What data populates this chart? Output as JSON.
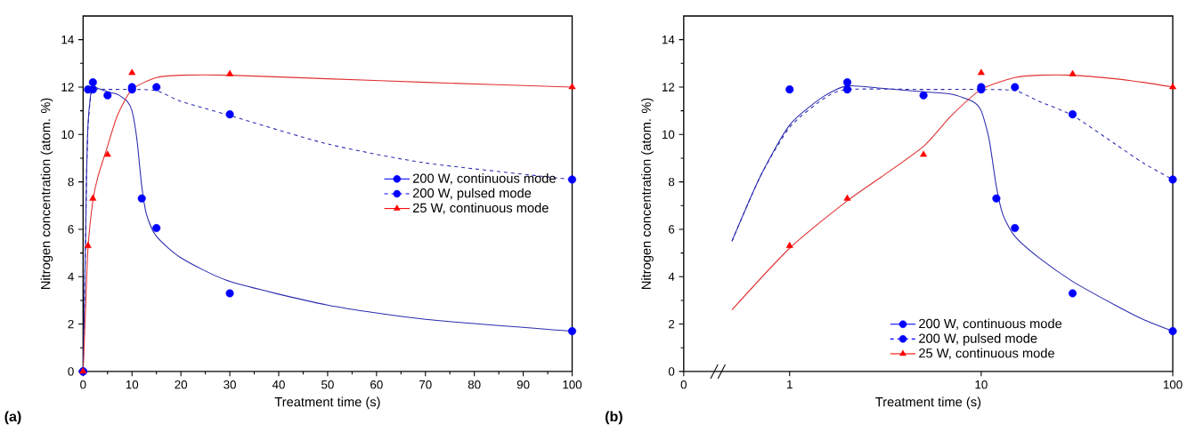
{
  "chart_data": [
    {
      "type": "scatter",
      "xlabel": "Treatment time (s)",
      "ylabel": "Nitrogen concentration (atom. %)",
      "annotations": [
        "(a)"
      ],
      "xlim": [
        0,
        100
      ],
      "ylim": [
        0,
        15
      ],
      "xticks": [
        0,
        10,
        20,
        30,
        40,
        50,
        60,
        70,
        80,
        90,
        100
      ],
      "yticks": [
        0,
        2,
        4,
        6,
        8,
        10,
        12,
        14
      ],
      "legend": "right",
      "grid": false,
      "series": [
        {
          "type": "line",
          "color": "#2b2bb0",
          "line_style": "solid",
          "marker": "none",
          "x": [
            0,
            0.5,
            0.7,
            1,
            1.5,
            2,
            3,
            5,
            7,
            9,
            10,
            11,
            12,
            13,
            15,
            20,
            30,
            50,
            70,
            100
          ],
          "values": [
            0,
            5.5,
            8.2,
            10.4,
            11.6,
            12.05,
            11.95,
            11.8,
            11.7,
            11.4,
            11.0,
            9.8,
            7.8,
            6.6,
            5.7,
            4.8,
            3.8,
            2.8,
            2.2,
            1.7
          ]
        },
        {
          "type": "line",
          "color": "#2b2bb0",
          "line_style": "dashed",
          "marker": "none",
          "x": [
            0,
            0.5,
            0.7,
            1,
            1.5,
            2,
            5,
            10,
            15,
            20,
            30,
            50,
            70,
            100
          ],
          "values": [
            0,
            5.5,
            8.2,
            10.3,
            11.5,
            11.9,
            11.9,
            11.9,
            11.85,
            11.4,
            10.8,
            9.6,
            8.8,
            8.1
          ]
        },
        {
          "type": "line",
          "color": "#e03030",
          "line_style": "solid",
          "marker": "none",
          "x": [
            0,
            0.5,
            1,
            2,
            3,
            5,
            7,
            10,
            15,
            20,
            30,
            50,
            70,
            100
          ],
          "values": [
            0,
            2.6,
            5.2,
            7.2,
            8.2,
            9.5,
            10.8,
            11.9,
            12.4,
            12.5,
            12.5,
            12.35,
            12.2,
            12.0
          ]
        },
        {
          "name": "200 W, continuous mode",
          "color": "#0000ff",
          "line_style": "solid",
          "marker": "circle",
          "x": [
            0,
            2,
            5,
            10,
            12,
            15,
            30,
            100
          ],
          "values": [
            0,
            12.2,
            11.65,
            12.0,
            7.3,
            6.05,
            3.3,
            1.7
          ]
        },
        {
          "name": "200 W, pulsed mode",
          "color": "#0000ff",
          "line_style": "dashed",
          "marker": "circle",
          "x": [
            0,
            1,
            2,
            10,
            15,
            30,
            100
          ],
          "values": [
            0,
            11.9,
            11.9,
            11.9,
            12.0,
            10.85,
            8.1
          ]
        },
        {
          "name": "25 W, continuous mode",
          "color": "#ff0000",
          "line_style": "solid",
          "marker": "triangle",
          "x": [
            0,
            1,
            2,
            5,
            10,
            30,
            100
          ],
          "values": [
            0,
            5.3,
            7.3,
            9.15,
            12.6,
            12.55,
            12.0
          ]
        }
      ]
    },
    {
      "type": "scatter",
      "xlabel": "Treatment time (s)",
      "ylabel": "Nitrogen concentration (atom. %)",
      "annotations": [
        "(b)"
      ],
      "log": "x",
      "xlim": [
        0.28,
        100
      ],
      "ylim": [
        0,
        15
      ],
      "xticks": [
        {
          "value": 0.28,
          "label": "0"
        },
        1,
        10,
        100
      ],
      "yticks": [
        0,
        2,
        4,
        6,
        8,
        10,
        12,
        14
      ],
      "legend": "bottom",
      "grid": false,
      "series": [
        {
          "type": "line",
          "color": "#2b2bb0",
          "line_style": "solid",
          "marker": "none",
          "x": [
            0.5,
            0.7,
            1,
            1.5,
            2,
            3,
            5,
            7,
            9,
            10,
            11,
            12,
            13,
            15,
            20,
            30,
            50,
            70,
            100
          ],
          "values": [
            5.5,
            8.2,
            10.4,
            11.6,
            12.05,
            11.95,
            11.8,
            11.7,
            11.4,
            11.0,
            9.8,
            7.8,
            6.6,
            5.7,
            4.8,
            3.8,
            2.8,
            2.2,
            1.7
          ]
        },
        {
          "type": "line",
          "color": "#2b2bb0",
          "line_style": "dashed",
          "marker": "none",
          "x": [
            0.5,
            0.7,
            1,
            1.5,
            2,
            5,
            10,
            15,
            20,
            30,
            50,
            70,
            100
          ],
          "values": [
            5.5,
            8.2,
            10.3,
            11.5,
            11.9,
            11.9,
            11.9,
            11.85,
            11.4,
            10.8,
            9.6,
            8.8,
            8.1
          ]
        },
        {
          "type": "line",
          "color": "#e03030",
          "line_style": "solid",
          "marker": "none",
          "x": [
            0.5,
            1,
            2,
            3,
            5,
            7,
            10,
            15,
            20,
            30,
            50,
            70,
            100
          ],
          "values": [
            2.6,
            5.2,
            7.2,
            8.2,
            9.5,
            10.8,
            11.9,
            12.4,
            12.5,
            12.5,
            12.35,
            12.2,
            12.0
          ]
        },
        {
          "name": "200 W, continuous mode",
          "color": "#0000ff",
          "line_style": "solid",
          "marker": "circle",
          "x": [
            2,
            5,
            10,
            12,
            15,
            30,
            100
          ],
          "values": [
            12.2,
            11.65,
            12.0,
            7.3,
            6.05,
            3.3,
            1.7
          ]
        },
        {
          "name": "200 W, pulsed mode",
          "color": "#0000ff",
          "line_style": "dashed",
          "marker": "circle",
          "x": [
            1,
            2,
            10,
            15,
            30,
            100
          ],
          "values": [
            11.9,
            11.9,
            11.9,
            12.0,
            10.85,
            8.1
          ]
        },
        {
          "name": "25 W, continuous mode",
          "color": "#ff0000",
          "line_style": "solid",
          "marker": "triangle",
          "x": [
            1,
            2,
            5,
            10,
            30,
            100
          ],
          "values": [
            5.3,
            7.3,
            9.15,
            12.6,
            12.55,
            12.0
          ]
        }
      ]
    }
  ]
}
